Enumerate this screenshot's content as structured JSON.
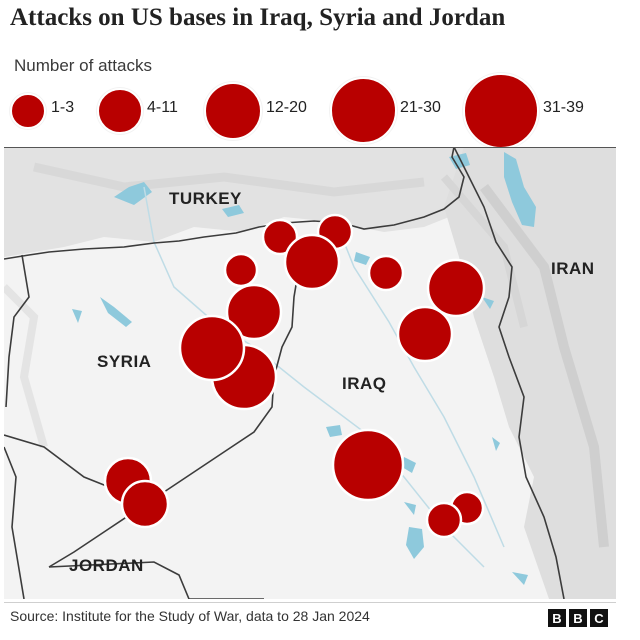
{
  "title": "Attacks on US bases in Iraq, Syria and Jordan",
  "legend": {
    "title": "Number of attacks",
    "items": [
      {
        "label": "1-3"
      },
      {
        "label": "4-11"
      },
      {
        "label": "12-20"
      },
      {
        "label": "21-30"
      },
      {
        "label": "31-39"
      }
    ]
  },
  "labels": {
    "turkey": "TURKEY",
    "syria": "SYRIA",
    "iraq": "IRAQ",
    "iran": "IRAN",
    "jordan": "JORDAN"
  },
  "source": "Source: Institute for the Study of War, data to 28 Jan 2024",
  "brand": {
    "letters": [
      "B",
      "B",
      "C"
    ]
  },
  "colors": {
    "marker": "#b80000",
    "water": "#8ec9dc",
    "border": "#3c3c3c",
    "terrain": "#efefef"
  },
  "markers": [
    {
      "size_class": "4-11"
    },
    {
      "size_class": "4-11"
    },
    {
      "size_class": "21-30"
    },
    {
      "size_class": "4-11"
    },
    {
      "size_class": "21-30"
    },
    {
      "size_class": "4-11"
    },
    {
      "size_class": "31-39"
    },
    {
      "size_class": "31-39"
    },
    {
      "size_class": "21-30"
    },
    {
      "size_class": "21-30"
    },
    {
      "size_class": "31-39"
    },
    {
      "size_class": "12-20"
    },
    {
      "size_class": "12-20"
    },
    {
      "size_class": "4-11"
    },
    {
      "size_class": "4-11"
    }
  ]
}
